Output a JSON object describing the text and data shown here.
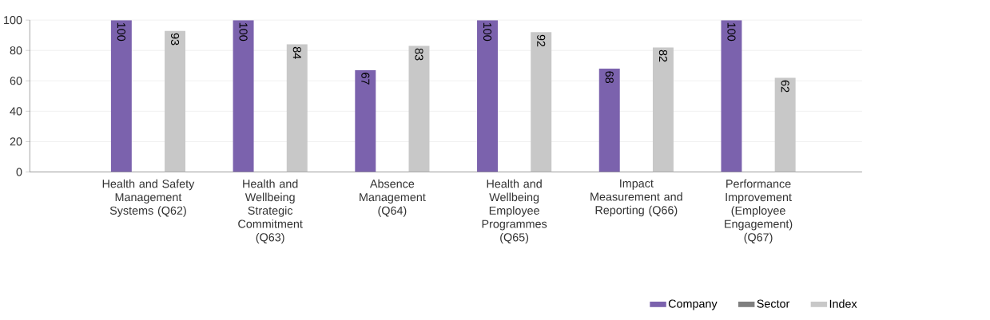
{
  "chart_data": {
    "type": "bar",
    "categories": [
      "Health and Safety Management Systems (Q62)",
      "Health and Wellbeing Strategic Commitment (Q63)",
      "Absence Management (Q64)",
      "Health and Wellbeing Employee Programmes (Q65)",
      "Impact Measurement and Reporting (Q66)",
      "Performance Improvement (Employee Engagement) (Q67)"
    ],
    "series": [
      {
        "name": "Company",
        "color": "#7b62ad",
        "values": [
          100,
          100,
          67,
          100,
          68,
          100
        ]
      },
      {
        "name": "Sector",
        "color": "#7f7f7f",
        "values": [
          null,
          null,
          null,
          null,
          null,
          null
        ]
      },
      {
        "name": "Index",
        "color": "#c8c8c8",
        "values": [
          93,
          84,
          83,
          92,
          82,
          62
        ]
      }
    ],
    "ylim": [
      0,
      100
    ],
    "yticks": [
      0,
      20,
      40,
      60,
      80,
      100
    ],
    "grid": "y",
    "legend": "bottom right",
    "data_labels": true
  }
}
